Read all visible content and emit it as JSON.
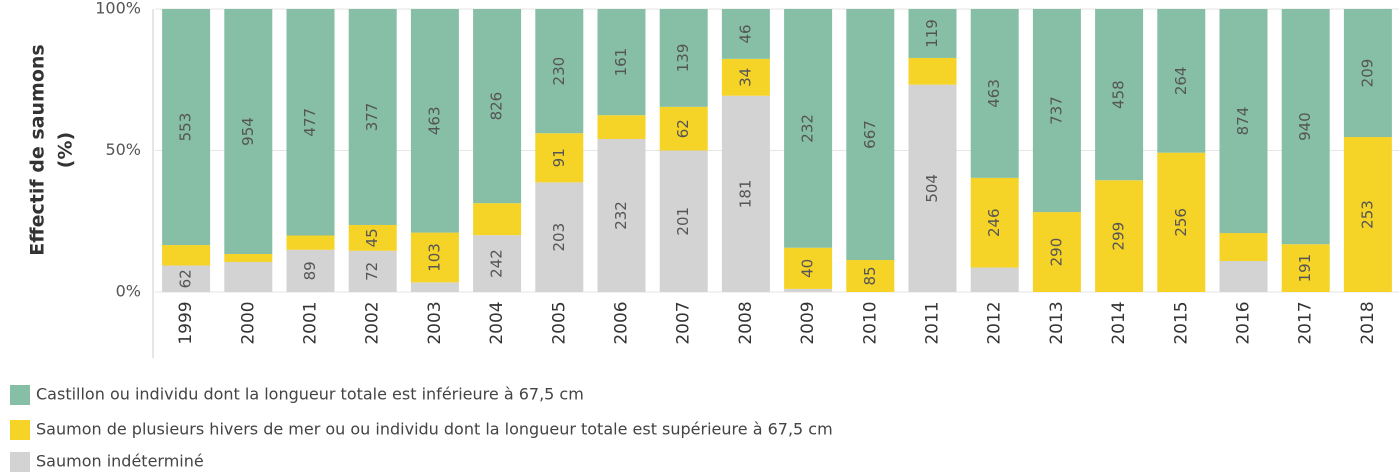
{
  "chart_data": {
    "type": "bar",
    "stacking": "percent",
    "ylabel": [
      "Effectif de saumons",
      "(%)"
    ],
    "categories": [
      "1999",
      "2000",
      "2001",
      "2002",
      "2003",
      "2004",
      "2005",
      "2006",
      "2007",
      "2008",
      "2009",
      "2010",
      "2011",
      "2012",
      "2013",
      "2014",
      "2015",
      "2016",
      "2017",
      "2018"
    ],
    "series": [
      {
        "name": "Saumon indéterminé",
        "color": "#d3d3d3",
        "values": [
          62,
          117,
          89,
          72,
          20,
          242,
          203,
          232,
          201,
          181,
          3,
          0,
          504,
          67,
          0,
          0,
          0,
          121,
          0,
          0
        ],
        "value_labels": [
          "62",
          null,
          "89",
          "72",
          null,
          "242",
          "203",
          "232",
          "201",
          "181",
          null,
          null,
          "504",
          null,
          null,
          null,
          null,
          null,
          null,
          null
        ]
      },
      {
        "name": "Saumon de plusieurs hivers de mer ou ou individu dont la longueur totale est supérieure à  67,5 cm",
        "color": "#f5d327",
        "values": [
          48,
          31,
          30,
          45,
          103,
          136,
          91,
          36,
          62,
          34,
          40,
          85,
          65,
          246,
          290,
          299,
          256,
          109,
          191,
          253
        ],
        "value_labels": [
          null,
          null,
          null,
          "45",
          "103",
          null,
          "91",
          null,
          "62",
          "34",
          "40",
          "85",
          null,
          "246",
          "290",
          "299",
          "256",
          null,
          "191",
          "253"
        ]
      },
      {
        "name": "Castillon ou individu dont la longueur totale est inférieure à  67,5 cm",
        "color": "#86bfa6",
        "values": [
          553,
          954,
          477,
          377,
          463,
          826,
          230,
          161,
          139,
          46,
          232,
          667,
          119,
          463,
          737,
          458,
          264,
          874,
          940,
          209
        ],
        "value_labels": [
          "553",
          "954",
          "477",
          "377",
          "463",
          "826",
          "230",
          "161",
          "139",
          "46",
          "232",
          "667",
          "119",
          "463",
          "737",
          "458",
          "264",
          "874",
          "940",
          "209"
        ]
      }
    ],
    "ylim": [
      0,
      100
    ],
    "yticks": [
      {
        "value": 0,
        "label": "0%"
      },
      {
        "value": 50,
        "label": "50%"
      },
      {
        "value": 100,
        "label": "100%"
      }
    ],
    "grid": true
  }
}
